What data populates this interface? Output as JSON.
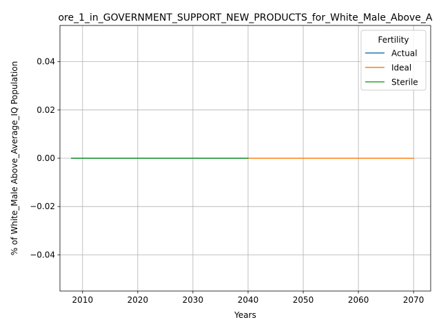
{
  "chart_data": {
    "type": "line",
    "title": "ore_1_in_GOVERNMENT_SUPPORT_NEW_PRODUCTS_for_White_Male_Above_A",
    "xlabel": "Years",
    "ylabel": "% of White_Male Above_Average_IQ Population",
    "xlim": [
      2005.9,
      2073.1
    ],
    "ylim": [
      -0.055,
      0.055
    ],
    "x_ticks": [
      2010,
      2020,
      2030,
      2040,
      2050,
      2060,
      2070
    ],
    "y_ticks": [
      -0.04,
      -0.02,
      0.0,
      0.02,
      0.04
    ],
    "y_tick_labels": [
      "−0.04",
      "−0.02",
      "0.00",
      "0.02",
      "0.04"
    ],
    "grid": true,
    "legend": {
      "title": "Fertility",
      "placement": "top-right"
    },
    "series": [
      {
        "name": "Actual",
        "color": "#1f77b4",
        "x": [
          2008,
          2040
        ],
        "y": [
          0.0,
          0.0
        ]
      },
      {
        "name": "Ideal",
        "color": "#ff7f0e",
        "x": [
          2040,
          2070
        ],
        "y": [
          0.0,
          0.0
        ]
      },
      {
        "name": "Sterile",
        "color": "#2ca02c",
        "x": [
          2008,
          2040
        ],
        "y": [
          0.0,
          0.0
        ]
      }
    ]
  }
}
